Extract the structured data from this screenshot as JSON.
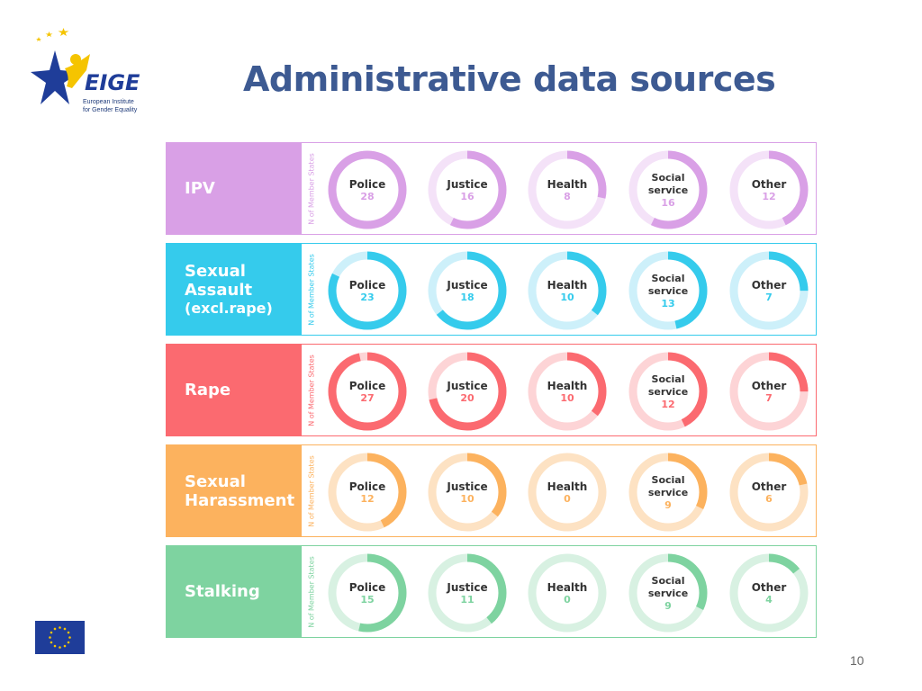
{
  "header": {
    "title": "Administrative data sources",
    "logo_text": "EIGE",
    "logo_subtitle_line1": "European Institute",
    "logo_subtitle_line2": "for Gender Equality"
  },
  "side_axis_label": "N of Member States",
  "page_number": "10",
  "chart_data": {
    "type": "donut-grid",
    "total": 28,
    "categories": [
      "Police",
      "Justice",
      "Health",
      "Social service",
      "Other"
    ],
    "rows": [
      {
        "name": "IPV",
        "name_lines": [
          "IPV"
        ],
        "subtitle": "",
        "color": "#d9a0e6",
        "light": "#f4e2f8",
        "values": [
          28,
          16,
          8,
          16,
          12
        ]
      },
      {
        "name": "Sexual Assault (excl.rape)",
        "name_lines": [
          "Sexual",
          "Assault"
        ],
        "subtitle": "(excl.rape)",
        "color": "#35cbec",
        "light": "#cdf0fa",
        "values": [
          23,
          18,
          10,
          13,
          7
        ]
      },
      {
        "name": "Rape",
        "name_lines": [
          "Rape"
        ],
        "subtitle": "",
        "color": "#fb6a70",
        "light": "#fdd4d6",
        "values": [
          27,
          20,
          10,
          12,
          7
        ]
      },
      {
        "name": "Sexual Harassment",
        "name_lines": [
          "Sexual",
          "Harassment"
        ],
        "subtitle": "",
        "color": "#fcb25e",
        "light": "#fde2c3",
        "values": [
          12,
          10,
          0,
          9,
          6
        ]
      },
      {
        "name": "Stalking",
        "name_lines": [
          "Stalking"
        ],
        "subtitle": "",
        "color": "#7ed3a0",
        "light": "#d8f1e2",
        "values": [
          15,
          11,
          0,
          9,
          4
        ]
      }
    ]
  }
}
